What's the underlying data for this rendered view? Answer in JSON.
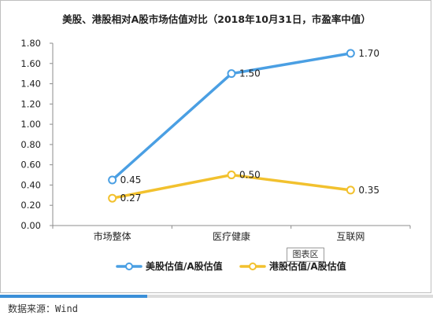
{
  "chart_data": {
    "type": "line",
    "title": "美股、港股相对A股市场估值对比（2018年10月31日，市盈率中值）",
    "categories": [
      "市场整体",
      "医疗健康",
      "互联网"
    ],
    "series": [
      {
        "name": "美股估值/A股估值",
        "values": [
          0.45,
          1.5,
          1.7
        ],
        "labels": [
          "0.45",
          "1.50",
          "1.70"
        ],
        "color": "#4a9fe3"
      },
      {
        "name": "港股估值/A股估值",
        "values": [
          0.27,
          0.5,
          0.35
        ],
        "labels": [
          "0.27",
          "0.50",
          "0.35"
        ],
        "color": "#f2c12e"
      }
    ],
    "ylim": [
      0,
      1.8
    ],
    "yticks": [
      "0.00",
      "0.20",
      "0.40",
      "0.60",
      "0.80",
      "1.00",
      "1.20",
      "1.40",
      "1.60",
      "1.80"
    ],
    "grid": false,
    "legend_position": "bottom"
  },
  "legend_box_label": "图表区",
  "progress": {
    "fraction": 0.34,
    "color": "#3b8fd8"
  },
  "source": {
    "label": "数据来源：",
    "value": "Wind"
  }
}
